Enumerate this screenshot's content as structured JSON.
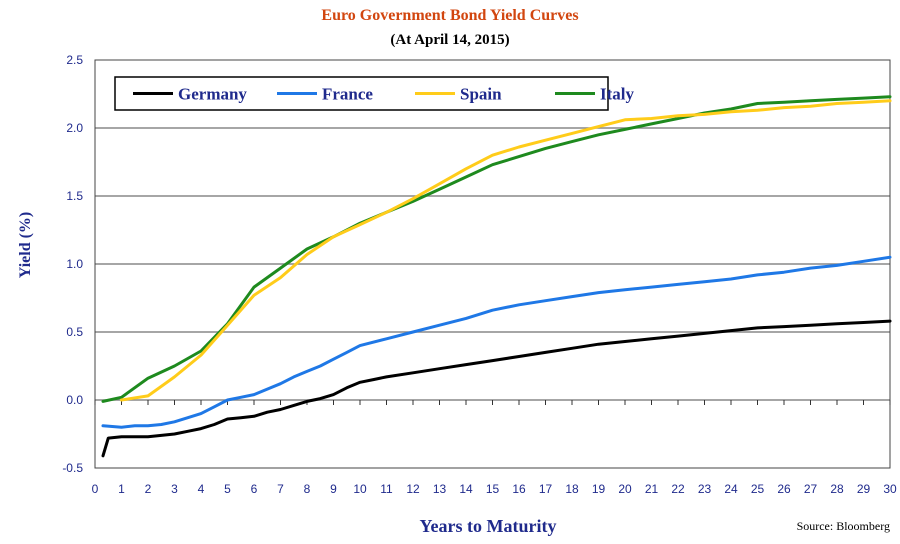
{
  "chart_data": {
    "type": "line",
    "title": "Euro Government Bond Yield Curves",
    "subtitle": "(At April 14, 2015)",
    "xlabel": "Years to Maturity",
    "ylabel": "Yield (%)",
    "source": "Source: Bloomberg",
    "xlim": [
      0,
      30
    ],
    "ylim": [
      -0.5,
      2.5
    ],
    "x_ticks": [
      0,
      1,
      2,
      3,
      4,
      5,
      6,
      7,
      8,
      9,
      10,
      11,
      12,
      13,
      14,
      15,
      16,
      17,
      18,
      19,
      20,
      21,
      22,
      23,
      24,
      25,
      26,
      27,
      28,
      29,
      30
    ],
    "y_ticks": [
      -0.5,
      0.0,
      0.5,
      1.0,
      1.5,
      2.0,
      2.5
    ],
    "y_tick_labels": [
      "-0.5",
      "0.0",
      "0.5",
      "1.0",
      "1.5",
      "2.0",
      "2.5"
    ],
    "grid": "horizontal",
    "legend_position": "top-left",
    "series": [
      {
        "name": "Germany",
        "color": "#000000",
        "points": [
          [
            0.3,
            -0.41
          ],
          [
            0.5,
            -0.28
          ],
          [
            1,
            -0.27
          ],
          [
            1.5,
            -0.27
          ],
          [
            2,
            -0.27
          ],
          [
            2.5,
            -0.26
          ],
          [
            3,
            -0.25
          ],
          [
            3.5,
            -0.23
          ],
          [
            4,
            -0.21
          ],
          [
            4.5,
            -0.18
          ],
          [
            5,
            -0.14
          ],
          [
            5.5,
            -0.13
          ],
          [
            6,
            -0.12
          ],
          [
            6.5,
            -0.09
          ],
          [
            7,
            -0.07
          ],
          [
            7.5,
            -0.04
          ],
          [
            8,
            -0.01
          ],
          [
            8.5,
            0.01
          ],
          [
            9,
            0.04
          ],
          [
            9.5,
            0.09
          ],
          [
            10,
            0.13
          ],
          [
            10.5,
            0.15
          ],
          [
            11,
            0.17
          ],
          [
            12,
            0.2
          ],
          [
            13,
            0.23
          ],
          [
            14,
            0.26
          ],
          [
            15,
            0.29
          ],
          [
            16,
            0.32
          ],
          [
            17,
            0.35
          ],
          [
            18,
            0.38
          ],
          [
            19,
            0.41
          ],
          [
            20,
            0.43
          ],
          [
            21,
            0.45
          ],
          [
            22,
            0.47
          ],
          [
            23,
            0.49
          ],
          [
            24,
            0.51
          ],
          [
            25,
            0.53
          ],
          [
            26,
            0.54
          ],
          [
            27,
            0.55
          ],
          [
            28,
            0.56
          ],
          [
            29,
            0.57
          ],
          [
            30,
            0.58
          ]
        ]
      },
      {
        "name": "France",
        "color": "#1f78e6",
        "points": [
          [
            0.3,
            -0.19
          ],
          [
            1,
            -0.2
          ],
          [
            1.5,
            -0.19
          ],
          [
            2,
            -0.19
          ],
          [
            2.5,
            -0.18
          ],
          [
            3,
            -0.16
          ],
          [
            3.5,
            -0.13
          ],
          [
            4,
            -0.1
          ],
          [
            4.5,
            -0.05
          ],
          [
            5,
            0.0
          ],
          [
            5.5,
            0.02
          ],
          [
            6,
            0.04
          ],
          [
            6.5,
            0.08
          ],
          [
            7,
            0.12
          ],
          [
            7.5,
            0.17
          ],
          [
            8,
            0.21
          ],
          [
            8.5,
            0.25
          ],
          [
            9,
            0.3
          ],
          [
            9.5,
            0.35
          ],
          [
            10,
            0.4
          ],
          [
            11,
            0.45
          ],
          [
            12,
            0.5
          ],
          [
            13,
            0.55
          ],
          [
            14,
            0.6
          ],
          [
            15,
            0.66
          ],
          [
            16,
            0.7
          ],
          [
            17,
            0.73
          ],
          [
            18,
            0.76
          ],
          [
            19,
            0.79
          ],
          [
            20,
            0.81
          ],
          [
            21,
            0.83
          ],
          [
            22,
            0.85
          ],
          [
            23,
            0.87
          ],
          [
            24,
            0.89
          ],
          [
            25,
            0.92
          ],
          [
            26,
            0.94
          ],
          [
            27,
            0.97
          ],
          [
            28,
            0.99
          ],
          [
            29,
            1.02
          ],
          [
            30,
            1.05
          ]
        ]
      },
      {
        "name": "Spain",
        "color": "#ffcc1a",
        "points": [
          [
            1,
            0.0
          ],
          [
            2,
            0.03
          ],
          [
            3,
            0.17
          ],
          [
            4,
            0.33
          ],
          [
            5,
            0.55
          ],
          [
            6,
            0.77
          ],
          [
            7,
            0.9
          ],
          [
            8,
            1.07
          ],
          [
            9,
            1.2
          ],
          [
            10,
            1.29
          ],
          [
            11,
            1.38
          ],
          [
            12,
            1.48
          ],
          [
            13,
            1.59
          ],
          [
            14,
            1.7
          ],
          [
            15,
            1.8
          ],
          [
            16,
            1.86
          ],
          [
            17,
            1.91
          ],
          [
            18,
            1.96
          ],
          [
            19,
            2.01
          ],
          [
            20,
            2.06
          ],
          [
            21,
            2.07
          ],
          [
            22,
            2.09
          ],
          [
            23,
            2.1
          ],
          [
            24,
            2.12
          ],
          [
            25,
            2.13
          ],
          [
            26,
            2.15
          ],
          [
            27,
            2.16
          ],
          [
            28,
            2.18
          ],
          [
            29,
            2.19
          ],
          [
            30,
            2.2
          ]
        ]
      },
      {
        "name": "Italy",
        "color": "#1e8a1e",
        "points": [
          [
            0.3,
            -0.01
          ],
          [
            1,
            0.02
          ],
          [
            2,
            0.16
          ],
          [
            3,
            0.25
          ],
          [
            4,
            0.36
          ],
          [
            5,
            0.56
          ],
          [
            6,
            0.83
          ],
          [
            7,
            0.97
          ],
          [
            8,
            1.11
          ],
          [
            9,
            1.2
          ],
          [
            10,
            1.3
          ],
          [
            11,
            1.38
          ],
          [
            12,
            1.46
          ],
          [
            13,
            1.55
          ],
          [
            14,
            1.64
          ],
          [
            15,
            1.73
          ],
          [
            16,
            1.79
          ],
          [
            17,
            1.85
          ],
          [
            18,
            1.9
          ],
          [
            19,
            1.95
          ],
          [
            20,
            1.99
          ],
          [
            21,
            2.03
          ],
          [
            22,
            2.07
          ],
          [
            23,
            2.11
          ],
          [
            24,
            2.14
          ],
          [
            25,
            2.18
          ],
          [
            26,
            2.19
          ],
          [
            27,
            2.2
          ],
          [
            28,
            2.21
          ],
          [
            29,
            2.22
          ],
          [
            30,
            2.23
          ]
        ]
      }
    ],
    "colors": {
      "title": "#d2460f",
      "axis_label": "#1f2a8c",
      "tick_label": "#1f2a8c",
      "grid": "#888888"
    }
  }
}
